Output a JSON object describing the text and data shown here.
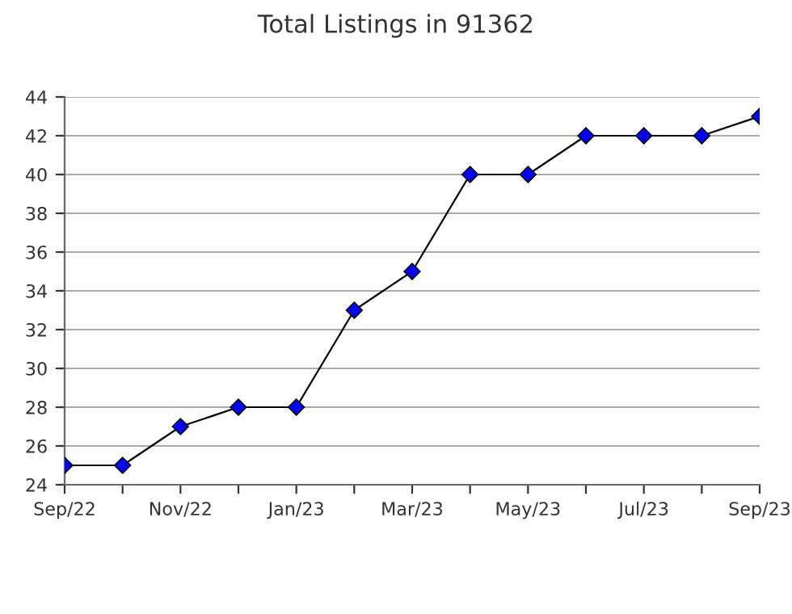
{
  "chart_data": {
    "type": "line",
    "title": "Total Listings in 91362",
    "categories": [
      "Sep/22",
      null,
      "Nov/22",
      null,
      "Jan/23",
      null,
      "Mar/23",
      null,
      "May/23",
      null,
      "Jul/23",
      null,
      "Sep/23"
    ],
    "series": [
      {
        "color": "#0000ff",
        "values": [
          25,
          25,
          27,
          28,
          28,
          33,
          35,
          40,
          40,
          42,
          42,
          42,
          43
        ]
      }
    ],
    "ylim": [
      24,
      44
    ],
    "yticks": [
      24,
      26,
      28,
      30,
      32,
      34,
      36,
      38,
      40,
      42,
      44
    ],
    "grid": "y",
    "marker": "diamond",
    "line_style": "solid",
    "legend": false
  }
}
